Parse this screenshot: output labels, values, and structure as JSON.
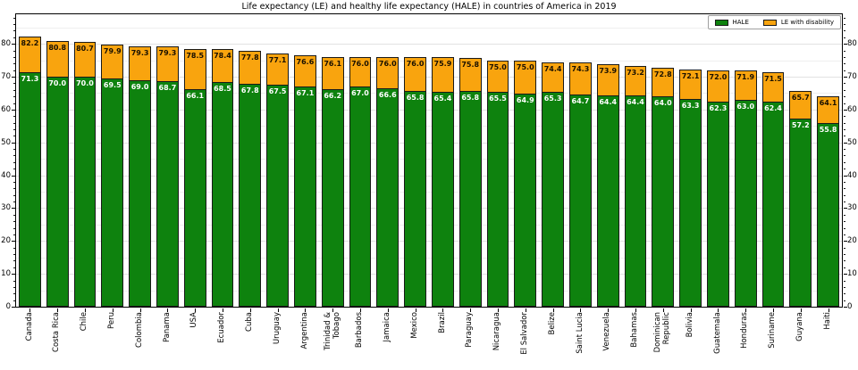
{
  "chart_data": {
    "type": "bar",
    "stacked": true,
    "title": "Life expectancy (LE) and healthy life expectancy (HALE) in countries of America in 2019",
    "categories": [
      "Canada",
      "Costa Rica",
      "Chile",
      "Peru",
      "Colombia",
      "Panama",
      "USA",
      "Ecuador",
      "Cuba",
      "Uruguay",
      "Argentina",
      "Trinidad &\nTobago",
      "Barbados",
      "Jamaica",
      "Mexico",
      "Brazil",
      "Paraguay",
      "Nicaragua",
      "El Salvador",
      "Belize",
      "Saint Lucia",
      "Venezuela",
      "Bahamas",
      "Dominican\nRepublic",
      "Bolivia",
      "Guatemala",
      "Honduras",
      "Suriname",
      "Guyana",
      "Haiti"
    ],
    "series": [
      {
        "name": "HALE",
        "color": "#0E820E",
        "values": [
          71.3,
          70.0,
          70.0,
          69.5,
          69.0,
          68.7,
          66.1,
          68.5,
          67.8,
          67.5,
          67.1,
          66.2,
          67.0,
          66.6,
          65.8,
          65.4,
          65.8,
          65.5,
          64.9,
          65.3,
          64.7,
          64.4,
          64.4,
          64.0,
          63.3,
          62.3,
          63.0,
          62.4,
          57.2,
          55.8
        ]
      },
      {
        "name": "LE with disability",
        "color": "#F9A40E",
        "values": [
          10.9,
          10.8,
          10.7,
          10.4,
          10.3,
          10.6,
          12.4,
          9.9,
          10.0,
          9.6,
          9.5,
          9.9,
          9.0,
          9.4,
          10.2,
          10.5,
          10.0,
          9.5,
          10.1,
          9.1,
          9.6,
          9.5,
          8.8,
          8.8,
          8.8,
          9.7,
          8.9,
          9.1,
          8.5,
          8.3
        ]
      }
    ],
    "le_totals": [
      82.2,
      80.8,
      80.7,
      79.9,
      79.3,
      79.3,
      78.5,
      78.4,
      77.8,
      77.1,
      76.6,
      76.1,
      76.0,
      76.0,
      76.0,
      75.9,
      75.8,
      75.0,
      75.0,
      74.4,
      74.3,
      73.9,
      73.2,
      72.8,
      72.1,
      72.0,
      71.9,
      71.5,
      65.7,
      64.1
    ],
    "bar_label_format": "one_decimal",
    "xlabel": "",
    "ylabel": "",
    "ylim": [
      0,
      89
    ],
    "yticks": [
      0,
      10,
      20,
      30,
      40,
      50,
      60,
      70,
      80
    ],
    "grid": true,
    "grid_step": 5,
    "minor_tick_step": 2,
    "legend_position": "upper right"
  },
  "legend": {
    "items": [
      {
        "label": "HALE",
        "color": "#0E820E"
      },
      {
        "label": "LE with disability",
        "color": "#F9A40E"
      }
    ]
  },
  "colors": {
    "hale": "#0E820E",
    "le_with_disability": "#F9A40E",
    "bar_edge": "#1a1a1a",
    "hale_label_text": "#ffffff",
    "le_label_text": "#191000",
    "grid_major": "#e2e2e2",
    "grid_minor": "#efefef"
  }
}
